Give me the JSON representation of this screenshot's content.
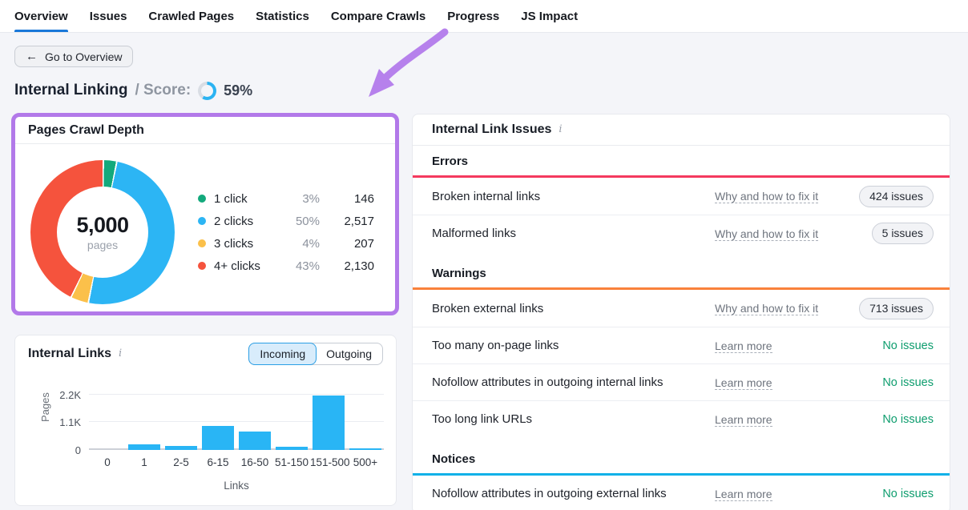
{
  "nav": {
    "tabs": [
      {
        "label": "Overview",
        "active": true
      },
      {
        "label": "Issues",
        "active": false
      },
      {
        "label": "Crawled Pages",
        "active": false
      },
      {
        "label": "Statistics",
        "active": false
      },
      {
        "label": "Compare Crawls",
        "active": false
      },
      {
        "label": "Progress",
        "active": false
      },
      {
        "label": "JS Impact",
        "active": false
      }
    ]
  },
  "toolbar": {
    "back_label": "Go to Overview"
  },
  "icons": {
    "back_arrow": "←",
    "info": "i"
  },
  "header": {
    "title": "Internal Linking",
    "score_label": "/ Score:",
    "score_value": "59%",
    "score_pct": 59
  },
  "colors": {
    "score_arc": "#2bb3f2",
    "score_track": "#d9dde4",
    "highlight_purple": "#b279e9",
    "arrow_purple": "#b681ec"
  },
  "chart_data": [
    {
      "type": "pie",
      "subtype": "donut",
      "title": "Pages Crawl Depth",
      "center_value": "5,000",
      "center_label": "pages",
      "segments": [
        {
          "label": "1 click",
          "pct": 3,
          "pct_label": "3%",
          "value": "146",
          "color": "#13a97c"
        },
        {
          "label": "2 clicks",
          "pct": 50,
          "pct_label": "50%",
          "value": "2,517",
          "color": "#2cb5f4"
        },
        {
          "label": "3 clicks",
          "pct": 4,
          "pct_label": "4%",
          "value": "207",
          "color": "#fbc04a"
        },
        {
          "label": "4+ clicks",
          "pct": 43,
          "pct_label": "43%",
          "value": "2,130",
          "color": "#f5533d"
        }
      ]
    },
    {
      "type": "bar",
      "title": "Internal Links",
      "toggle": {
        "options": [
          "Incoming",
          "Outgoing"
        ],
        "selected": "Incoming"
      },
      "categories": [
        "0",
        "1",
        "2-5",
        "6-15",
        "16-50",
        "51-150",
        "151-500",
        "500+"
      ],
      "values": [
        0,
        230,
        170,
        950,
        720,
        140,
        2160,
        60
      ],
      "xlabel": "Links",
      "ylabel": "Pages",
      "yticks": [
        "2.2K",
        "1.1K",
        "0"
      ],
      "ylim": [
        0,
        2300
      ],
      "bar_color": "#29b5f5",
      "legend_position": "none",
      "grid": true
    }
  ],
  "issues_panel": {
    "title": "Internal Link Issues",
    "sections": [
      {
        "name": "Errors",
        "color": "#f5395e",
        "rows": [
          {
            "label": "Broken internal links",
            "link_label": "Why and how to fix it",
            "badge": "424 issues"
          },
          {
            "label": "Malformed links",
            "link_label": "Why and how to fix it",
            "badge": "5 issues"
          }
        ]
      },
      {
        "name": "Warnings",
        "color": "#f9813b",
        "rows": [
          {
            "label": "Broken external links",
            "link_label": "Why and how to fix it",
            "badge": "713 issues"
          },
          {
            "label": "Too many on-page links",
            "link_label": "Learn more",
            "status": "No issues"
          },
          {
            "label": "Nofollow attributes in outgoing internal links",
            "link_label": "Learn more",
            "status": "No issues"
          },
          {
            "label": "Too long link URLs",
            "link_label": "Learn more",
            "status": "No issues"
          }
        ]
      },
      {
        "name": "Notices",
        "color": "#10b1e8",
        "rows": [
          {
            "label": "Nofollow attributes in outgoing external links",
            "link_label": "Learn more",
            "status": "No issues"
          }
        ]
      }
    ]
  }
}
